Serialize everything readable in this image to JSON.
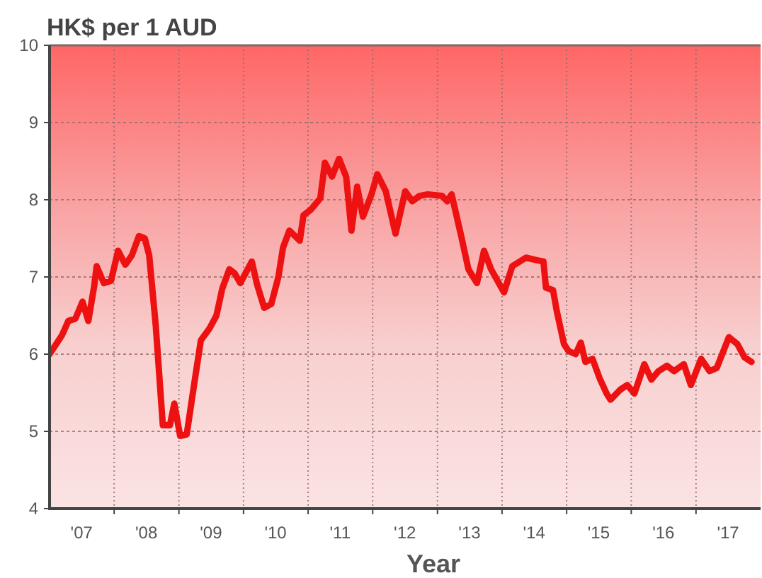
{
  "chart_data": {
    "type": "line",
    "title": "HK$ per 1 AUD",
    "xlabel": "Year",
    "x": [
      "2007-01-01",
      "2007-03-11",
      "2007-04-17",
      "2007-05-27",
      "2007-07-06",
      "2007-08-08",
      "2007-09-10",
      "2007-09-24",
      "2007-11-04",
      "2007-12-14",
      "2008-01-23",
      "2008-03-04",
      "2008-04-10",
      "2008-05-20",
      "2008-06-22",
      "2008-07-17",
      "2008-08-23",
      "2008-10-02",
      "2008-11-11",
      "2008-12-06",
      "2009-01-08",
      "2009-02-14",
      "2009-03-26",
      "2009-05-05",
      "2009-06-22",
      "2009-08-01",
      "2009-09-03",
      "2009-10-13",
      "2009-11-11",
      "2009-12-14",
      "2010-02-17",
      "2010-03-19",
      "2010-04-28",
      "2010-06-07",
      "2010-07-17",
      "2010-08-12",
      "2010-09-17",
      "2010-11-15",
      "2010-12-06",
      "2011-01-16",
      "2011-03-11",
      "2011-04-06",
      "2011-05-16",
      "2011-06-25",
      "2011-08-04",
      "2011-09-03",
      "2011-10-05",
      "2011-11-07",
      "2011-12-25",
      "2012-01-27",
      "2012-03-15",
      "2012-05-09",
      "2012-07-03",
      "2012-08-12",
      "2012-09-21",
      "2012-11-07",
      "2013-01-27",
      "2013-02-25",
      "2013-03-22",
      "2013-05-16",
      "2013-06-25",
      "2013-08-12",
      "2013-09-21",
      "2013-10-31",
      "2014-01-12",
      "2014-02-28",
      "2014-05-16",
      "2014-07-13",
      "2014-08-23",
      "2014-09-06",
      "2014-10-16",
      "2014-11-07",
      "2014-12-17",
      "2015-01-12",
      "2015-02-21",
      "2015-03-22",
      "2015-04-17",
      "2015-05-27",
      "2015-07-06",
      "2015-08-15",
      "2015-09-06",
      "2015-10-31",
      "2015-12-10",
      "2016-01-19",
      "2016-03-15",
      "2016-04-24",
      "2016-06-03",
      "2016-07-21",
      "2016-08-30",
      "2016-10-24",
      "2016-12-03",
      "2017-01-30",
      "2017-03-19",
      "2017-04-28",
      "2017-07-06",
      "2017-08-23",
      "2017-10-02",
      "2017-11-11"
    ],
    "series": [
      {
        "color": "#ee1111",
        "values": [
          6.0,
          6.24,
          6.43,
          6.46,
          6.68,
          6.43,
          6.88,
          7.14,
          6.92,
          6.95,
          7.34,
          7.16,
          7.28,
          7.53,
          7.5,
          7.28,
          6.37,
          5.08,
          5.08,
          5.36,
          4.94,
          4.96,
          5.58,
          6.18,
          6.33,
          6.5,
          6.85,
          7.1,
          7.05,
          6.92,
          7.2,
          6.9,
          6.6,
          6.65,
          7.0,
          7.38,
          7.6,
          7.47,
          7.8,
          7.87,
          8.02,
          8.48,
          8.3,
          8.53,
          8.3,
          7.6,
          8.17,
          7.78,
          8.07,
          8.33,
          8.11,
          7.56,
          8.11,
          7.98,
          8.05,
          8.07,
          8.05,
          7.98,
          8.07,
          7.52,
          7.1,
          6.92,
          7.34,
          7.1,
          6.8,
          7.14,
          7.25,
          7.22,
          7.2,
          6.86,
          6.83,
          6.55,
          6.13,
          6.04,
          6.0,
          6.15,
          5.9,
          5.94,
          5.69,
          5.49,
          5.41,
          5.54,
          5.6,
          5.49,
          5.87,
          5.67,
          5.78,
          5.85,
          5.78,
          5.87,
          5.6,
          5.94,
          5.78,
          5.82,
          6.22,
          6.13,
          5.96,
          5.9
        ]
      }
    ],
    "xlim": [
      "2007",
      "2018"
    ],
    "ylim": [
      4,
      10
    ],
    "xticks": [
      {
        "value": "2007-07",
        "label": "'07"
      },
      {
        "value": "2008",
        "label": null
      },
      {
        "value": "2008-07",
        "label": "'08"
      },
      {
        "value": "2009",
        "label": null
      },
      {
        "value": "2009-07",
        "label": "'09"
      },
      {
        "value": "2010",
        "label": null
      },
      {
        "value": "2010-07",
        "label": "'10"
      },
      {
        "value": "2011",
        "label": null
      },
      {
        "value": "2011-07",
        "label": "'11"
      },
      {
        "value": "2012",
        "label": null
      },
      {
        "value": "2012-07",
        "label": "'12"
      },
      {
        "value": "2013",
        "label": null
      },
      {
        "value": "2013-07",
        "label": "'13"
      },
      {
        "value": "2014",
        "label": null
      },
      {
        "value": "2014-07",
        "label": "'14"
      },
      {
        "value": "2015",
        "label": null
      },
      {
        "value": "2015-07",
        "label": "'15"
      },
      {
        "value": "2016",
        "label": null
      },
      {
        "value": "2016-07",
        "label": "'16"
      },
      {
        "value": "2017",
        "label": null
      },
      {
        "value": "2017-07",
        "label": "'17"
      }
    ],
    "yticks": [
      4,
      5,
      6,
      7,
      8,
      9,
      10
    ],
    "grid": true,
    "line_style": "solid"
  }
}
